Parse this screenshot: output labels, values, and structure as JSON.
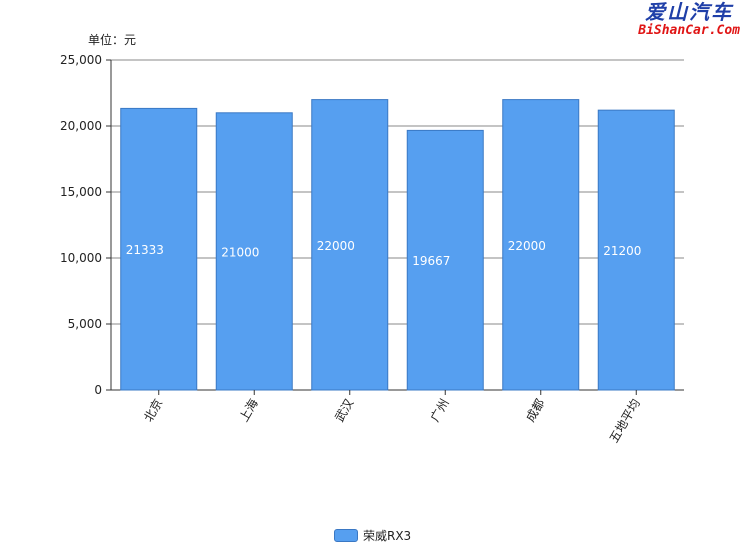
{
  "watermark": {
    "cn": "爱山汽车",
    "en": "BiShanCar.Com"
  },
  "chart_data": {
    "type": "bar",
    "title": "",
    "unit_label": "单位：元",
    "categories": [
      "北京",
      "上海",
      "武汉",
      "广州",
      "成都",
      "五地平均"
    ],
    "series": [
      {
        "name": "荣威RX3",
        "values": [
          21333,
          21000,
          22000,
          19667,
          22000,
          21200
        ],
        "color": "#569ff0"
      }
    ],
    "yticks": [
      "0",
      "5,000",
      "10,000",
      "15,000",
      "20,000",
      "25,000"
    ],
    "ylim": [
      0,
      25000
    ],
    "grid": true,
    "legend_position": "bottom"
  }
}
